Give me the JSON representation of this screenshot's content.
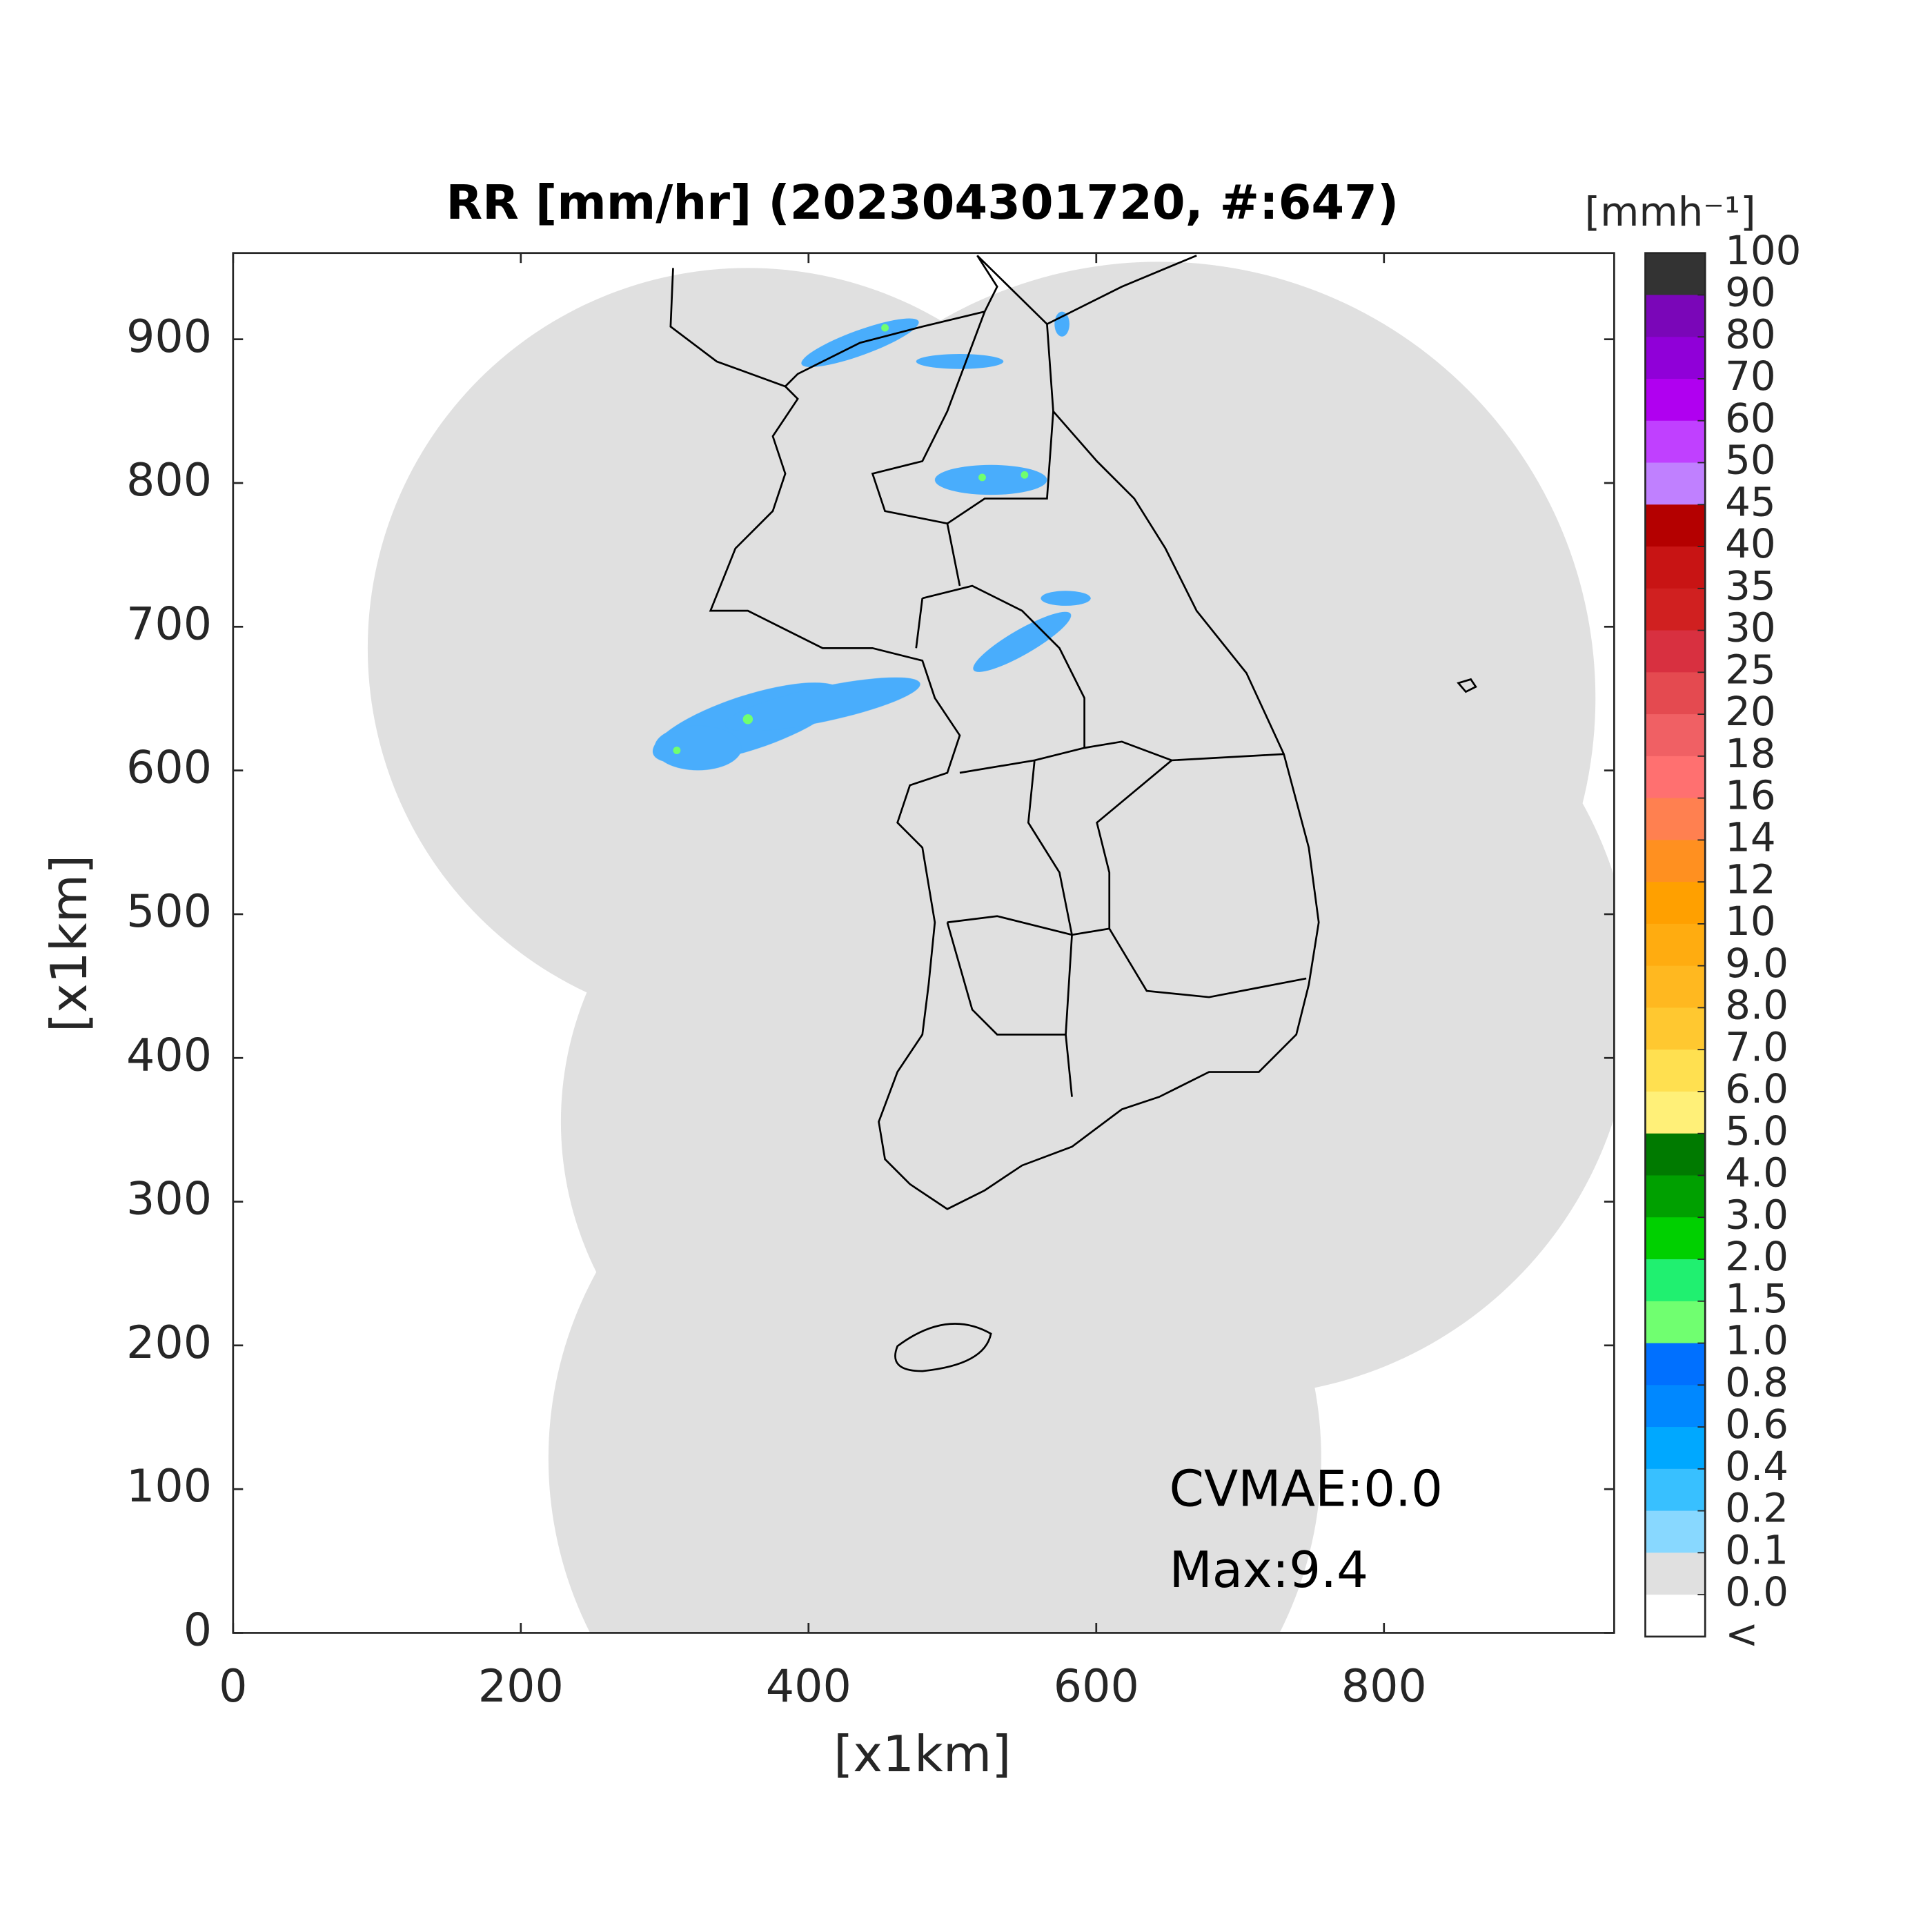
{
  "chart_data": {
    "type": "radar-map",
    "title": "RR [mm/hr] (202304301720, #:647)",
    "x_label": "[x1km]",
    "y_label": "[x1km]",
    "xlim": [
      0,
      960
    ],
    "ylim": [
      0,
      960
    ],
    "xticks": [
      0,
      200,
      400,
      600,
      800
    ],
    "yticks": [
      0,
      100,
      200,
      300,
      400,
      500,
      600,
      700,
      800,
      900
    ],
    "annotations": [
      "CVMAE:0.0",
      "Max:9.4"
    ],
    "colorbar": {
      "title": "[mmh⁻¹]",
      "labels": [
        "100",
        "90",
        "80",
        "70",
        "60",
        "50",
        "45",
        "40",
        "35",
        "30",
        "25",
        "20",
        "18",
        "16",
        "14",
        "12",
        "10",
        "9.0",
        "8.0",
        "7.0",
        "6.0",
        "5.0",
        "4.0",
        "3.0",
        "2.0",
        "1.5",
        "1.0",
        "0.8",
        "0.6",
        "0.4",
        "0.2",
        "0.1",
        "0.0",
        "<"
      ],
      "colors": [
        "#333333",
        "#7a06b8",
        "#9000d8",
        "#b000f0",
        "#c040ff",
        "#c080ff",
        "#b40000",
        "#c81414",
        "#d02020",
        "#d83040",
        "#e44a50",
        "#f06064",
        "#ff7070",
        "#ff8050",
        "#ff9020",
        "#ffa000",
        "#ffac10",
        "#ffb820",
        "#ffc830",
        "#ffe050",
        "#fff078",
        "#007a00",
        "#00a000",
        "#00d000",
        "#20f070",
        "#70ff70",
        "#0070ff",
        "#0088ff",
        "#00a8ff",
        "#38c0ff",
        "#88d8ff",
        "#e0e0e0",
        "#ffffff"
      ]
    }
  }
}
